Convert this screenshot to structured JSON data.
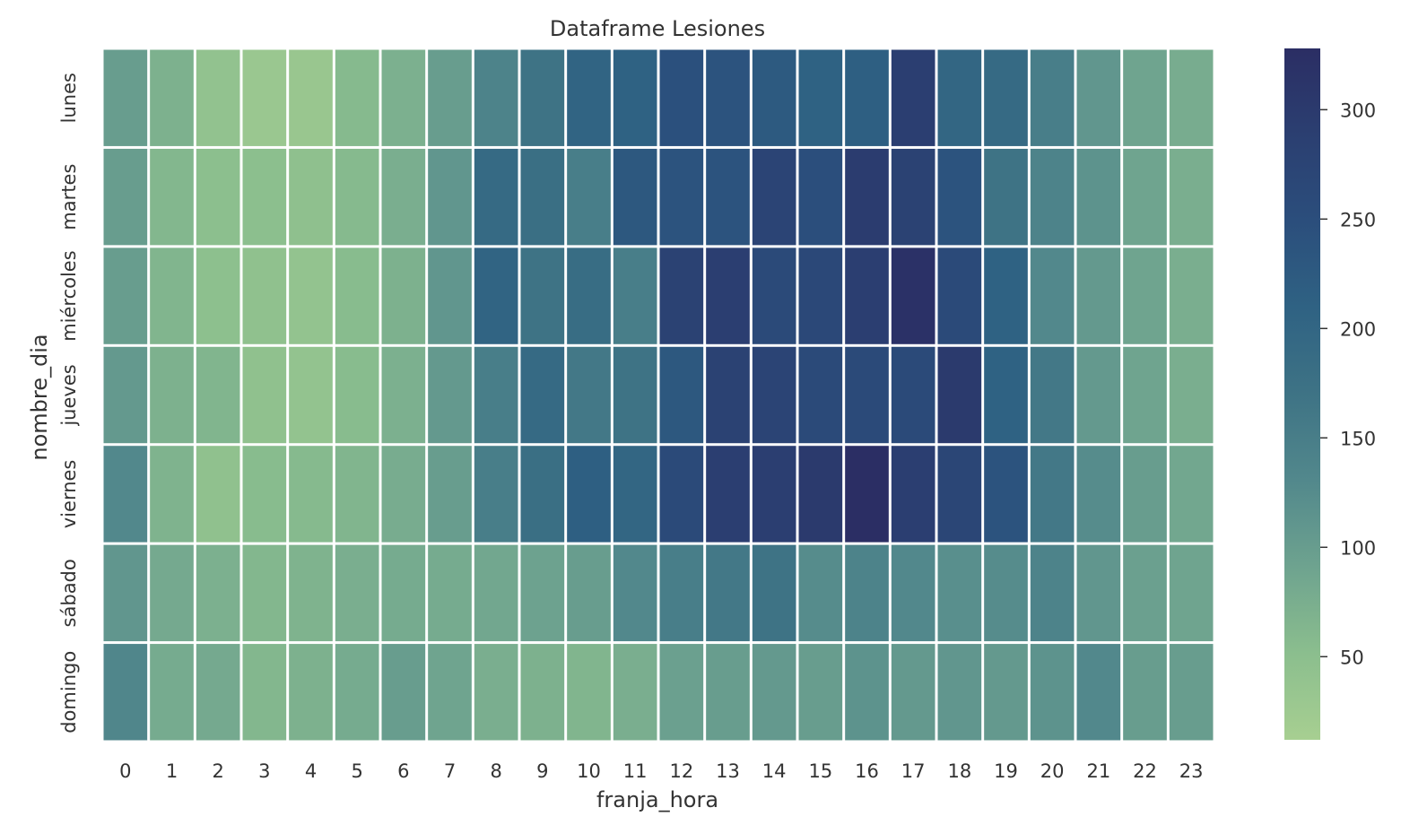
{
  "chart_data": {
    "type": "heatmap",
    "title": "Dataframe Lesiones",
    "xlabel": "franja_hora",
    "ylabel": "nombre_dia",
    "x_categories": [
      "0",
      "1",
      "2",
      "3",
      "4",
      "5",
      "6",
      "7",
      "8",
      "9",
      "10",
      "11",
      "12",
      "13",
      "14",
      "15",
      "16",
      "17",
      "18",
      "19",
      "20",
      "21",
      "22",
      "23"
    ],
    "y_categories": [
      "lunes",
      "martes",
      "miércoles",
      "jueves",
      "viernes",
      "sábado",
      "domingo"
    ],
    "values": [
      [
        100,
        70,
        42,
        30,
        32,
        58,
        72,
        100,
        140,
        170,
        205,
        210,
        245,
        240,
        225,
        210,
        215,
        290,
        200,
        190,
        150,
        110,
        90,
        78
      ],
      [
        100,
        62,
        50,
        50,
        46,
        58,
        75,
        110,
        190,
        180,
        150,
        230,
        240,
        240,
        275,
        250,
        295,
        280,
        240,
        170,
        140,
        115,
        90,
        75
      ],
      [
        100,
        65,
        48,
        45,
        40,
        55,
        70,
        110,
        205,
        170,
        185,
        150,
        280,
        290,
        260,
        265,
        290,
        320,
        260,
        210,
        130,
        105,
        90,
        75
      ],
      [
        105,
        70,
        65,
        45,
        40,
        55,
        72,
        105,
        150,
        190,
        160,
        170,
        230,
        280,
        275,
        260,
        260,
        260,
        300,
        210,
        160,
        105,
        90,
        75
      ],
      [
        130,
        68,
        45,
        55,
        58,
        65,
        78,
        100,
        150,
        180,
        215,
        200,
        260,
        290,
        290,
        300,
        330,
        290,
        270,
        240,
        160,
        125,
        100,
        85
      ],
      [
        110,
        82,
        72,
        62,
        68,
        75,
        80,
        80,
        85,
        92,
        100,
        130,
        150,
        160,
        170,
        125,
        140,
        130,
        120,
        125,
        140,
        110,
        95,
        90
      ],
      [
        135,
        80,
        82,
        62,
        70,
        80,
        100,
        90,
        75,
        70,
        65,
        75,
        95,
        100,
        105,
        100,
        115,
        105,
        110,
        105,
        115,
        130,
        100,
        100
      ]
    ],
    "colorbar": {
      "vmin": 12,
      "vmax": 328,
      "ticks": [
        50,
        100,
        150,
        200,
        250,
        300
      ],
      "colorscale": [
        "#a7cf91",
        "#8bbe8e",
        "#6ea38f",
        "#52888c",
        "#3e7385",
        "#2f6283",
        "#2b4e7c",
        "#2b3f71",
        "#2b2e64"
      ]
    }
  }
}
